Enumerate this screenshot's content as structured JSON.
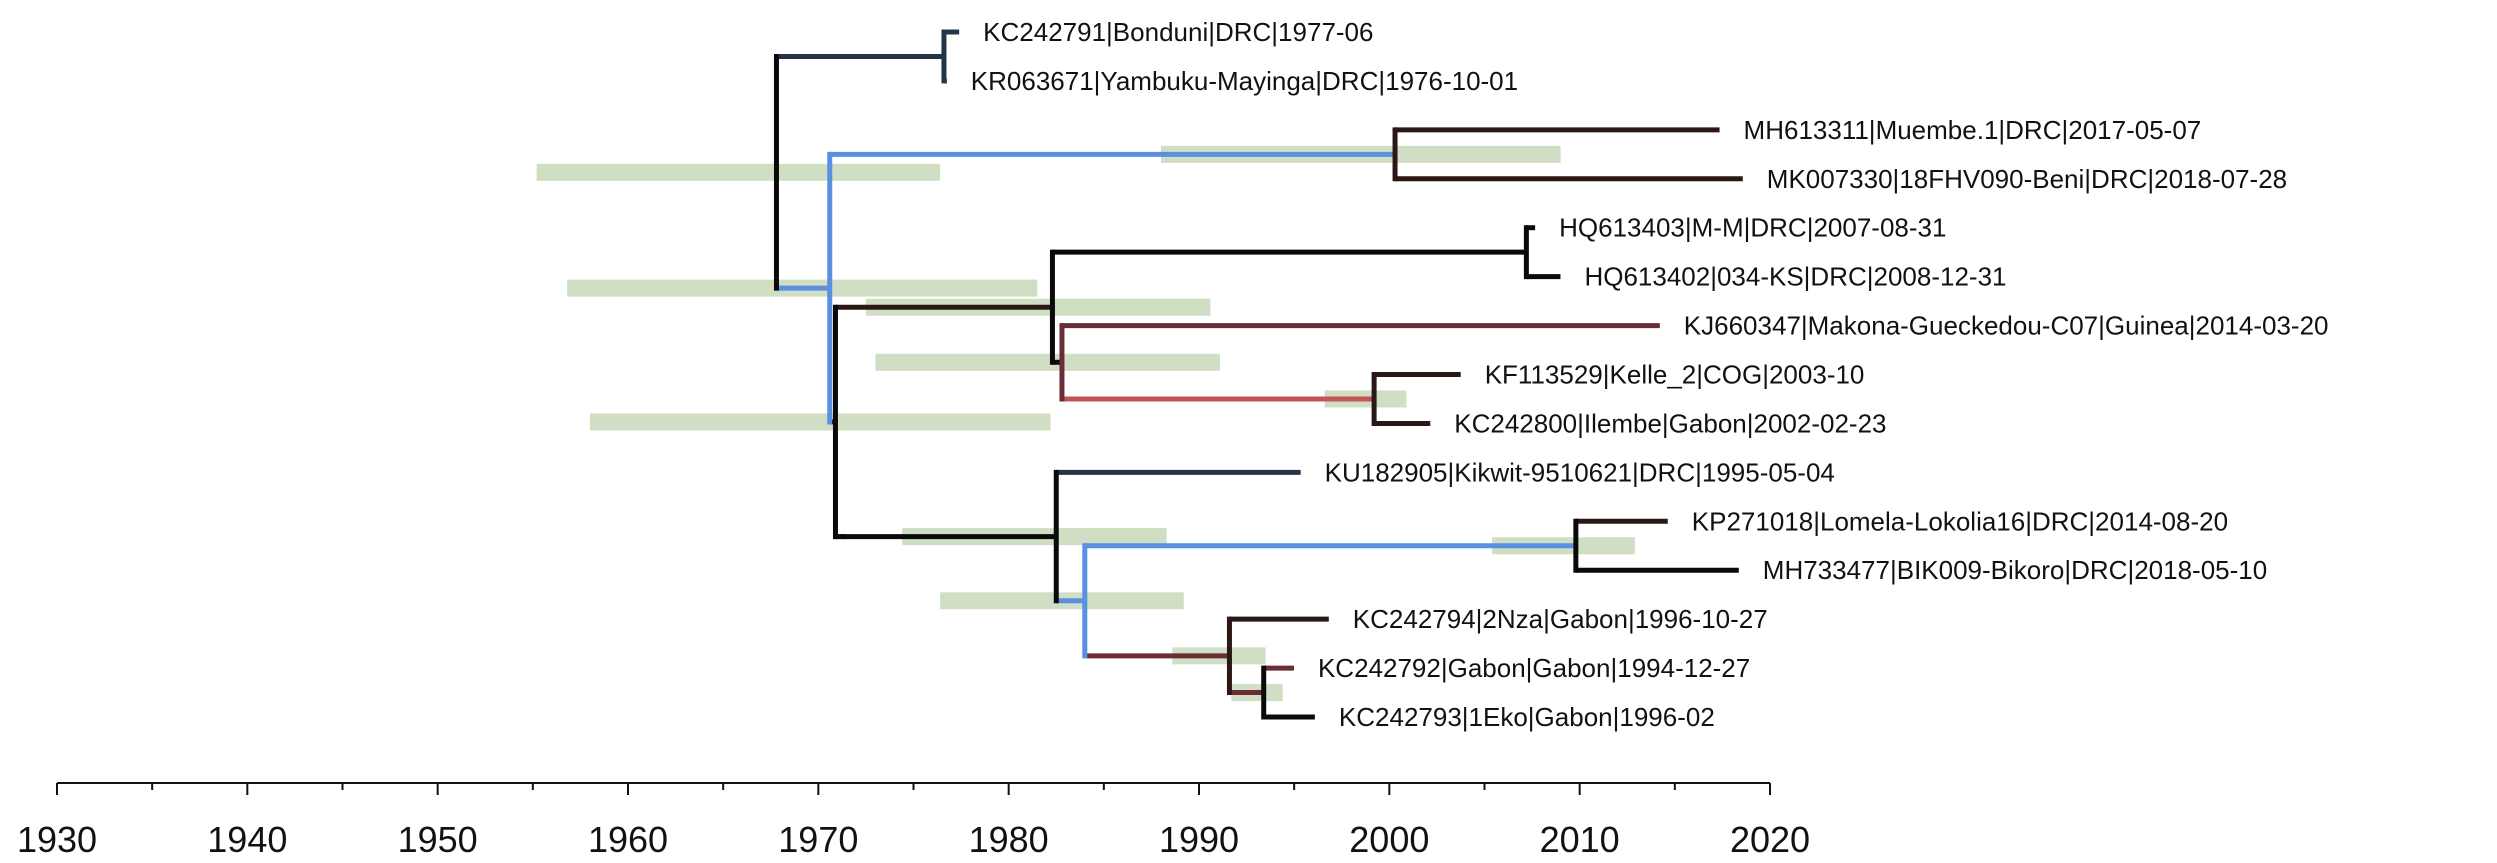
{
  "chart_data": {
    "type": "time-scaled phylogenetic tree",
    "xlim": [
      1930,
      2020
    ],
    "xticks": [
      1930,
      1940,
      1950,
      1960,
      1970,
      1980,
      1990,
      2000,
      2010,
      2020
    ],
    "minor_ticks_every": 5,
    "colors": {
      "black": "#0a0a0a",
      "dark_brown": "#2c1717",
      "maroon": "#6a2d36",
      "red": "#c25458",
      "blue": "#5b8fe0",
      "navy": "#243447",
      "hpd_bar": "#cddcc1"
    },
    "tips": [
      {
        "label": "KC242791|Bonduni|DRC|1977-06",
        "date": 1977.4
      },
      {
        "label": "KR063671|Yambuku-Mayinga|DRC|1976-10-01",
        "date": 1976.75
      },
      {
        "label": "MH613311|Muembe.1|DRC|2017-05-07",
        "date": 2017.35
      },
      {
        "label": "MK007330|18FHV090-Beni|DRC|2018-07-28",
        "date": 2018.57
      },
      {
        "label": "HQ613403|M-M|DRC|2007-08-31",
        "date": 2007.66
      },
      {
        "label": "HQ613402|034-KS|DRC|2008-12-31",
        "date": 2008.99
      },
      {
        "label": "KJ660347|Makona-Gueckedou-C07|Guinea|2014-03-20",
        "date": 2014.21
      },
      {
        "label": "KF113529|Kelle_2|COG|2003-10",
        "date": 2003.75
      },
      {
        "label": "KC242800|Ilembe|Gabon|2002-02-23",
        "date": 2002.15
      },
      {
        "label": "KU182905|Kikwit-9510621|DRC|1995-05-04",
        "date": 1995.34
      },
      {
        "label": "KP271018|Lomela-Lokolia16|DRC|2014-08-20",
        "date": 2014.63
      },
      {
        "label": "MH733477|BIK009-Bikoro|DRC|2018-05-10",
        "date": 2018.36
      },
      {
        "label": "KC242794|2Nza|Gabon|1996-10-27",
        "date": 1996.82
      },
      {
        "label": "KC242792|Gabon|Gabon|1994-12-27",
        "date": 1994.99
      },
      {
        "label": "KC242793|1Eko|Gabon|1996-02",
        "date": 1996.09
      }
    ],
    "nodes": [
      {
        "id": "root",
        "age": 1967.8,
        "children": [
          "n_mayinga",
          "n_main"
        ],
        "hpd": [
          1955.2,
          1976.4
        ]
      },
      {
        "id": "n_mayinga",
        "age": 1976.6,
        "children": [
          "t0",
          "t1"
        ]
      },
      {
        "id": "n_main",
        "age": 1970.6,
        "children": [
          "n_beni",
          "n_mid"
        ],
        "hpd": [
          1956.8,
          1981.5
        ]
      },
      {
        "id": "n_beni",
        "age": 2000.3,
        "children": [
          "t2",
          "t3"
        ],
        "hpd": [
          1988.0,
          2009.0
        ]
      },
      {
        "id": "n_mid",
        "age": 1970.9,
        "children": [
          "n_upper",
          "n_lower"
        ],
        "hpd": [
          1958.0,
          1982.2
        ]
      },
      {
        "id": "n_upper",
        "age": 1982.3,
        "children": [
          "n_luebo",
          "n_west"
        ],
        "hpd": [
          1972.5,
          1990.6
        ]
      },
      {
        "id": "n_luebo",
        "age": 2007.2,
        "children": [
          "t4",
          "t5"
        ]
      },
      {
        "id": "n_west",
        "age": 1982.8,
        "children": [
          "t6",
          "n_kelle"
        ],
        "hpd": [
          1973.0,
          1991.1
        ]
      },
      {
        "id": "n_kelle",
        "age": 1999.2,
        "children": [
          "t7",
          "t8"
        ],
        "hpd": [
          1996.6,
          2000.9
        ]
      },
      {
        "id": "n_lower",
        "age": 1971.3,
        "children": [
          "n_kik"
        ]
      },
      {
        "id": "n_kik",
        "age": 1982.5,
        "children": [
          "t9",
          "n_b"
        ],
        "hpd": [
          1974.4,
          1988.3
        ]
      },
      {
        "id": "n_b",
        "age": 1984.0,
        "children": [
          "n_lomela",
          "n_gab"
        ],
        "hpd": [
          1976.4,
          1989.2
        ]
      },
      {
        "id": "n_lomela",
        "age": 2009.8,
        "children": [
          "t10",
          "t11"
        ],
        "hpd": [
          2005.4,
          2012.9
        ]
      },
      {
        "id": "n_gab",
        "age": 1991.6,
        "children": [
          "t12",
          "n_gab2"
        ],
        "hpd": [
          1988.6,
          1993.5
        ]
      },
      {
        "id": "n_gab2",
        "age": 1993.4,
        "children": [
          "t13",
          "t14"
        ],
        "hpd": [
          1991.7,
          1994.4
        ]
      }
    ],
    "branch_colors": {
      "n_mayinga": "navy",
      "t0": "navy",
      "t1": "black",
      "n_main": "blue",
      "n_beni": "blue",
      "t2": "dark_brown",
      "t3": "dark_brown",
      "n_mid": "black",
      "n_upper": "dark_brown",
      "n_luebo": "black",
      "t4": "black",
      "t5": "black",
      "n_west": "black",
      "t6": "maroon",
      "n_kelle": "red",
      "t7": "dark_brown",
      "t8": "dark_brown",
      "n_lower": "black",
      "n_kik": "black",
      "t9": "navy",
      "n_b": "blue",
      "n_lomela": "blue",
      "t10": "dark_brown",
      "t11": "black",
      "n_gab": "maroon",
      "t12": "dark_brown",
      "n_gab2": "maroon",
      "t13": "maroon",
      "t14": "black"
    },
    "vertical_colors": {
      "root": "black",
      "n_mayinga": "navy",
      "n_main": "blue",
      "n_beni": "dark_brown",
      "n_mid": "black",
      "n_upper": "black",
      "n_luebo": "black",
      "n_west": "maroon",
      "n_kelle": "dark_brown",
      "n_lower": "black",
      "n_kik": "black",
      "n_b": "blue",
      "n_lomela": "black",
      "n_gab": "dark_brown",
      "n_gab2": "black"
    }
  }
}
